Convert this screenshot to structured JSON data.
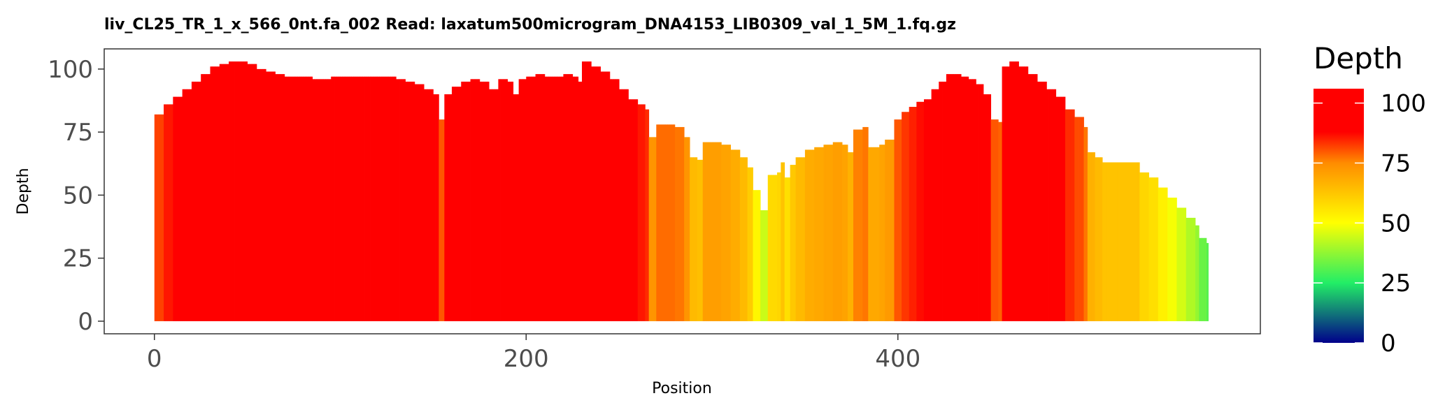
{
  "chart_data": {
    "type": "bar",
    "title": "liv_CL25_TR_1_x_566_0nt.fa_002   Read: laxatum500microgram_DNA4153_LIB0309_val_1_5M_1.fq.gz",
    "xlabel": "Position",
    "ylabel": "Depth",
    "xlim": [
      -27,
      595
    ],
    "ylim": [
      -5,
      108
    ],
    "x_ticks": [
      0,
      200,
      400
    ],
    "y_ticks": [
      0,
      25,
      50,
      75,
      100
    ],
    "grid": false,
    "legend": {
      "title": "Depth",
      "position": "right",
      "range": [
        0,
        106
      ],
      "ticks": [
        0,
        25,
        50,
        75,
        100
      ]
    },
    "color_scale": [
      {
        "value": 0,
        "color": "#00008b"
      },
      {
        "value": 25,
        "color": "#22ee66"
      },
      {
        "value": 50,
        "color": "#ffff00"
      },
      {
        "value": 75,
        "color": "#ff8c00"
      },
      {
        "value": 88,
        "color": "#ff0000"
      },
      {
        "value": 106,
        "color": "#ff0000"
      }
    ],
    "profile": [
      [
        0,
        82
      ],
      [
        5,
        86
      ],
      [
        10,
        89
      ],
      [
        15,
        92
      ],
      [
        20,
        95
      ],
      [
        25,
        98
      ],
      [
        30,
        101
      ],
      [
        35,
        102
      ],
      [
        40,
        103
      ],
      [
        45,
        103
      ],
      [
        50,
        102
      ],
      [
        55,
        100
      ],
      [
        60,
        99
      ],
      [
        65,
        98
      ],
      [
        70,
        97
      ],
      [
        75,
        97
      ],
      [
        80,
        97
      ],
      [
        85,
        96
      ],
      [
        90,
        96
      ],
      [
        95,
        97
      ],
      [
        100,
        97
      ],
      [
        105,
        97
      ],
      [
        110,
        97
      ],
      [
        115,
        97
      ],
      [
        120,
        97
      ],
      [
        125,
        97
      ],
      [
        130,
        96
      ],
      [
        135,
        95
      ],
      [
        140,
        94
      ],
      [
        145,
        92
      ],
      [
        150,
        90
      ],
      [
        153,
        80
      ],
      [
        156,
        90
      ],
      [
        160,
        93
      ],
      [
        165,
        95
      ],
      [
        170,
        96
      ],
      [
        175,
        95
      ],
      [
        180,
        92
      ],
      [
        185,
        96
      ],
      [
        190,
        95
      ],
      [
        193,
        90
      ],
      [
        196,
        96
      ],
      [
        200,
        97
      ],
      [
        205,
        98
      ],
      [
        210,
        97
      ],
      [
        215,
        97
      ],
      [
        220,
        98
      ],
      [
        225,
        97
      ],
      [
        228,
        95
      ],
      [
        230,
        103
      ],
      [
        235,
        101
      ],
      [
        240,
        99
      ],
      [
        245,
        96
      ],
      [
        250,
        92
      ],
      [
        255,
        88
      ],
      [
        260,
        86
      ],
      [
        264,
        84
      ],
      [
        266,
        73
      ],
      [
        270,
        78
      ],
      [
        275,
        78
      ],
      [
        280,
        77
      ],
      [
        285,
        73
      ],
      [
        288,
        65
      ],
      [
        292,
        64
      ],
      [
        295,
        71
      ],
      [
        300,
        71
      ],
      [
        305,
        70
      ],
      [
        310,
        68
      ],
      [
        315,
        65
      ],
      [
        319,
        61
      ],
      [
        322,
        52
      ],
      [
        326,
        44
      ],
      [
        330,
        58
      ],
      [
        335,
        59
      ],
      [
        337,
        63
      ],
      [
        339,
        57
      ],
      [
        342,
        62
      ],
      [
        345,
        65
      ],
      [
        350,
        68
      ],
      [
        355,
        69
      ],
      [
        360,
        70
      ],
      [
        365,
        71
      ],
      [
        370,
        70
      ],
      [
        373,
        67
      ],
      [
        376,
        76
      ],
      [
        381,
        77
      ],
      [
        384,
        69
      ],
      [
        390,
        70
      ],
      [
        393,
        72
      ],
      [
        398,
        80
      ],
      [
        402,
        83
      ],
      [
        406,
        85
      ],
      [
        410,
        87
      ],
      [
        414,
        88
      ],
      [
        418,
        92
      ],
      [
        422,
        95
      ],
      [
        426,
        98
      ],
      [
        430,
        98
      ],
      [
        434,
        97
      ],
      [
        438,
        96
      ],
      [
        442,
        94
      ],
      [
        446,
        90
      ],
      [
        450,
        80
      ],
      [
        454,
        79
      ],
      [
        456,
        101
      ],
      [
        460,
        103
      ],
      [
        463,
        103
      ],
      [
        465,
        101
      ],
      [
        470,
        98
      ],
      [
        475,
        95
      ],
      [
        480,
        92
      ],
      [
        485,
        89
      ],
      [
        490,
        84
      ],
      [
        495,
        81
      ],
      [
        500,
        77
      ],
      [
        502,
        67
      ],
      [
        506,
        65
      ],
      [
        510,
        63
      ],
      [
        515,
        63
      ],
      [
        520,
        63
      ],
      [
        525,
        63
      ],
      [
        530,
        59
      ],
      [
        535,
        57
      ],
      [
        540,
        53
      ],
      [
        545,
        49
      ],
      [
        550,
        45
      ],
      [
        555,
        41
      ],
      [
        560,
        38
      ],
      [
        562,
        33
      ],
      [
        566,
        31
      ]
    ]
  }
}
